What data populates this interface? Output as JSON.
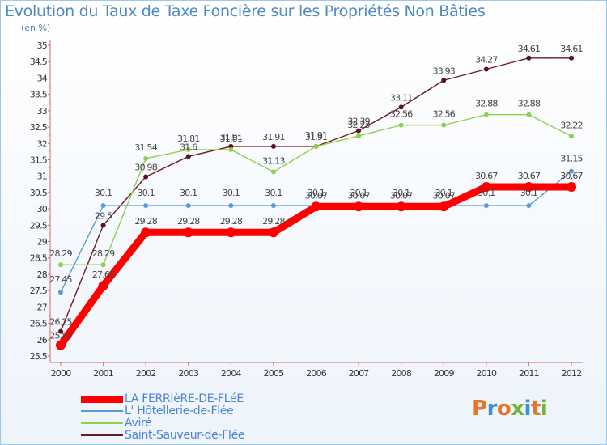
{
  "title": "Evolution du Taux de Taxe Foncière sur les Propriétés Non Bâties",
  "subtitle": "(en %)",
  "logo": {
    "text": "Proxiti",
    "letters": [
      {
        "ch": "P",
        "color": "#e8742b"
      },
      {
        "ch": "r",
        "color": "#3c8fd9"
      },
      {
        "ch": "o",
        "color": "#e8742b"
      },
      {
        "ch": "x",
        "color": "#6fb43b"
      },
      {
        "ch": "i",
        "color": "#3c8fd9"
      },
      {
        "ch": "t",
        "color": "#e8742b"
      },
      {
        "ch": "i",
        "color": "#6fb43b"
      }
    ]
  },
  "chart_data": {
    "type": "line",
    "title": "Evolution du Taux de Taxe Foncière sur les Propriétés Non Bâties",
    "ylabel": "(en %)",
    "xlabel": "",
    "ylim": [
      25.5,
      35
    ],
    "grid": false,
    "legend_position": "bottom-left",
    "x": [
      "2000",
      "2001",
      "2002",
      "2003",
      "2004",
      "2005",
      "2006",
      "2007",
      "2008",
      "2009",
      "2010",
      "2011",
      "2012"
    ],
    "yticks": [
      "25.5",
      "26",
      "26.5",
      "27",
      "27.5",
      "28",
      "28.5",
      "29",
      "29.5",
      "30",
      "30.5",
      "31",
      "31.5",
      "32",
      "32.5",
      "33",
      "33.5",
      "34",
      "34.5",
      "35"
    ],
    "series": [
      {
        "name": "LA FERRIèRE-DE-FLéE",
        "color": "#ff0000",
        "values": [
          25.83,
          27.65,
          29.28,
          29.28,
          29.28,
          29.28,
          30.07,
          30.07,
          30.07,
          30.07,
          30.67,
          30.67,
          30.67
        ],
        "labels": [
          "25.83",
          "27.65",
          "29.28",
          "29.28",
          "29.28",
          "29.28",
          "30.07",
          "30.07",
          "30.07",
          "30.07",
          "30.67",
          "30.67",
          "30.67"
        ]
      },
      {
        "name": "L' Hôtellerie-de-Flée",
        "color": "#5b9bd5",
        "values": [
          27.45,
          30.1,
          30.1,
          30.1,
          30.1,
          30.1,
          30.1,
          30.1,
          30.1,
          30.1,
          30.1,
          30.1,
          31.15
        ],
        "labels": [
          "27.45",
          "30.1",
          "30.1",
          "30.1",
          "30.1",
          "30.1",
          "30.1",
          "30.1",
          "30.1",
          "30.1",
          "30.1",
          "30.1",
          "31.15"
        ]
      },
      {
        "name": "Aviré",
        "color": "#8fd14f",
        "values": [
          28.29,
          28.29,
          31.54,
          31.81,
          31.81,
          31.13,
          31.91,
          32.23,
          32.56,
          32.56,
          32.88,
          32.88,
          32.22
        ],
        "labels": [
          "28.29",
          "28.29",
          "31.54",
          "31.81",
          "31.81",
          "31.13",
          "31.91",
          "32.23",
          "32.56",
          "32.56",
          "32.88",
          "32.88",
          "32.22"
        ]
      },
      {
        "name": "Saint-Sauveur-de-Flée",
        "color": "#6b1a24",
        "values": [
          26.25,
          29.5,
          30.98,
          31.6,
          31.91,
          31.91,
          31.91,
          32.39,
          33.11,
          33.93,
          34.27,
          34.61,
          34.61
        ],
        "labels": [
          "26.25",
          "29.5",
          "30.98",
          "31.6",
          "31.91",
          "31.91",
          "31.91",
          "32.39",
          "33.11",
          "33.93",
          "34.27",
          "34.61",
          "34.61"
        ]
      }
    ]
  }
}
